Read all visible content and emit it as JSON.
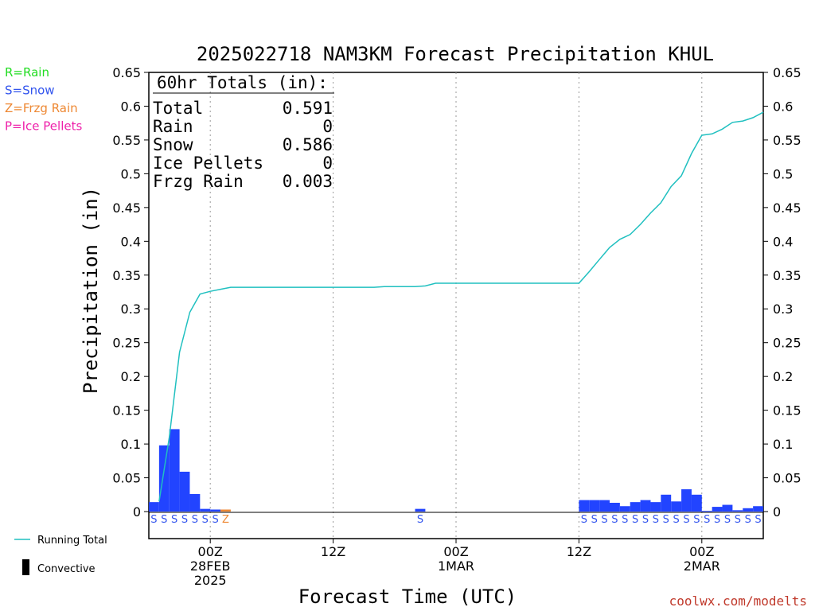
{
  "chart_data": {
    "type": "bar",
    "title": "2025022718 NAM3KM Forecast Precipitation KHUL",
    "ylabel": "Precipitation (in)",
    "xlabel": "Forecast Time (UTC)",
    "ylim": [
      -0.04,
      0.65
    ],
    "yticks": [
      0,
      0.05,
      0.1,
      0.15,
      0.2,
      0.25,
      0.3,
      0.35,
      0.4,
      0.45,
      0.5,
      0.55,
      0.6,
      0.65
    ],
    "ytick_labels": [
      "0",
      "0.05",
      "0.1",
      "0.15",
      "0.2",
      "0.25",
      "0.3",
      "0.35",
      "0.4",
      "0.45",
      "0.5",
      "0.55",
      "0.6",
      "0.65"
    ],
    "xlim_hours": [
      18,
      78
    ],
    "x_ticks": [
      {
        "hour": 24,
        "lines": [
          "00Z",
          "28FEB",
          "2025"
        ]
      },
      {
        "hour": 36,
        "lines": [
          "12Z"
        ]
      },
      {
        "hour": 48,
        "lines": [
          "00Z",
          "1MAR"
        ]
      },
      {
        "hour": 60,
        "lines": [
          "12Z"
        ]
      },
      {
        "hour": 72,
        "lines": [
          "00Z",
          "2MAR"
        ]
      }
    ],
    "grid": "vertical dotted",
    "bar_hours": [
      19,
      20,
      21,
      22,
      23,
      24,
      25,
      26,
      45,
      61,
      62,
      63,
      64,
      65,
      66,
      67,
      68,
      69,
      70,
      71,
      72,
      73,
      74,
      75,
      76,
      77,
      78
    ],
    "bar_values": [
      0.014,
      0.098,
      0.122,
      0.059,
      0.026,
      0.004,
      0.003,
      0.003,
      0.004,
      0.017,
      0.017,
      0.017,
      0.013,
      0.008,
      0.014,
      0.017,
      0.014,
      0.025,
      0.015,
      0.033,
      0.025,
      0.001,
      0.007,
      0.01,
      0.002,
      0.005,
      0.008
    ],
    "bar_types": [
      "S",
      "S",
      "S",
      "S",
      "S",
      "S",
      "S",
      "Z",
      "S",
      "S",
      "S",
      "S",
      "S",
      "S",
      "S",
      "S",
      "S",
      "S",
      "S",
      "S",
      "S",
      "S",
      "S",
      "S",
      "S",
      "S",
      "S"
    ],
    "series": [
      {
        "name": "Running Total",
        "x": [
          19,
          20,
          21,
          22,
          23,
          24,
          25,
          26,
          27,
          28,
          29,
          30,
          31,
          32,
          33,
          34,
          35,
          36,
          37,
          38,
          39,
          40,
          41,
          42,
          43,
          44,
          45,
          46,
          47,
          48,
          49,
          50,
          51,
          52,
          53,
          54,
          55,
          56,
          57,
          58,
          59,
          60,
          61,
          62,
          63,
          64,
          65,
          66,
          67,
          68,
          69,
          70,
          71,
          72,
          73,
          74,
          75,
          76,
          77,
          78
        ],
        "y": [
          0.015,
          0.11,
          0.236,
          0.295,
          0.322,
          0.326,
          0.329,
          0.332,
          0.332,
          0.332,
          0.332,
          0.332,
          0.332,
          0.332,
          0.332,
          0.332,
          0.332,
          0.332,
          0.332,
          0.332,
          0.332,
          0.332,
          0.333,
          0.333,
          0.333,
          0.333,
          0.334,
          0.338,
          0.338,
          0.338,
          0.338,
          0.338,
          0.338,
          0.338,
          0.338,
          0.338,
          0.338,
          0.338,
          0.338,
          0.338,
          0.338,
          0.338,
          0.355,
          0.373,
          0.391,
          0.403,
          0.41,
          0.425,
          0.442,
          0.457,
          0.481,
          0.497,
          0.53,
          0.557,
          0.559,
          0.566,
          0.576,
          0.578,
          0.583,
          0.591
        ],
        "color": "#20c0c0"
      }
    ],
    "totals": {
      "header": "60hr Totals (in):",
      "rows": [
        {
          "label": "Total",
          "value": "0.591"
        },
        {
          "label": "Rain",
          "value": "0"
        },
        {
          "label": "Snow",
          "value": "0.586"
        },
        {
          "label": "Ice Pellets",
          "value": "0"
        },
        {
          "label": "Frzg Rain",
          "value": "0.003"
        }
      ]
    },
    "ptype_legend": [
      {
        "text": "R=Rain",
        "color": "#22dd22"
      },
      {
        "text": "S=Snow",
        "color": "#3355ee"
      },
      {
        "text": "Z=Frzg Rain",
        "color": "#ee8833"
      },
      {
        "text": "P=Ice Pellets",
        "color": "#ee22aa"
      }
    ],
    "line_legend": "Running Total",
    "convective_legend": "Convective",
    "credit": "coolwx.com/modelts",
    "colors": {
      "bar": "#2244ff",
      "line": "#20c0c0",
      "snow_text": "#3355ee",
      "frzg_text": "#ee8833"
    }
  }
}
